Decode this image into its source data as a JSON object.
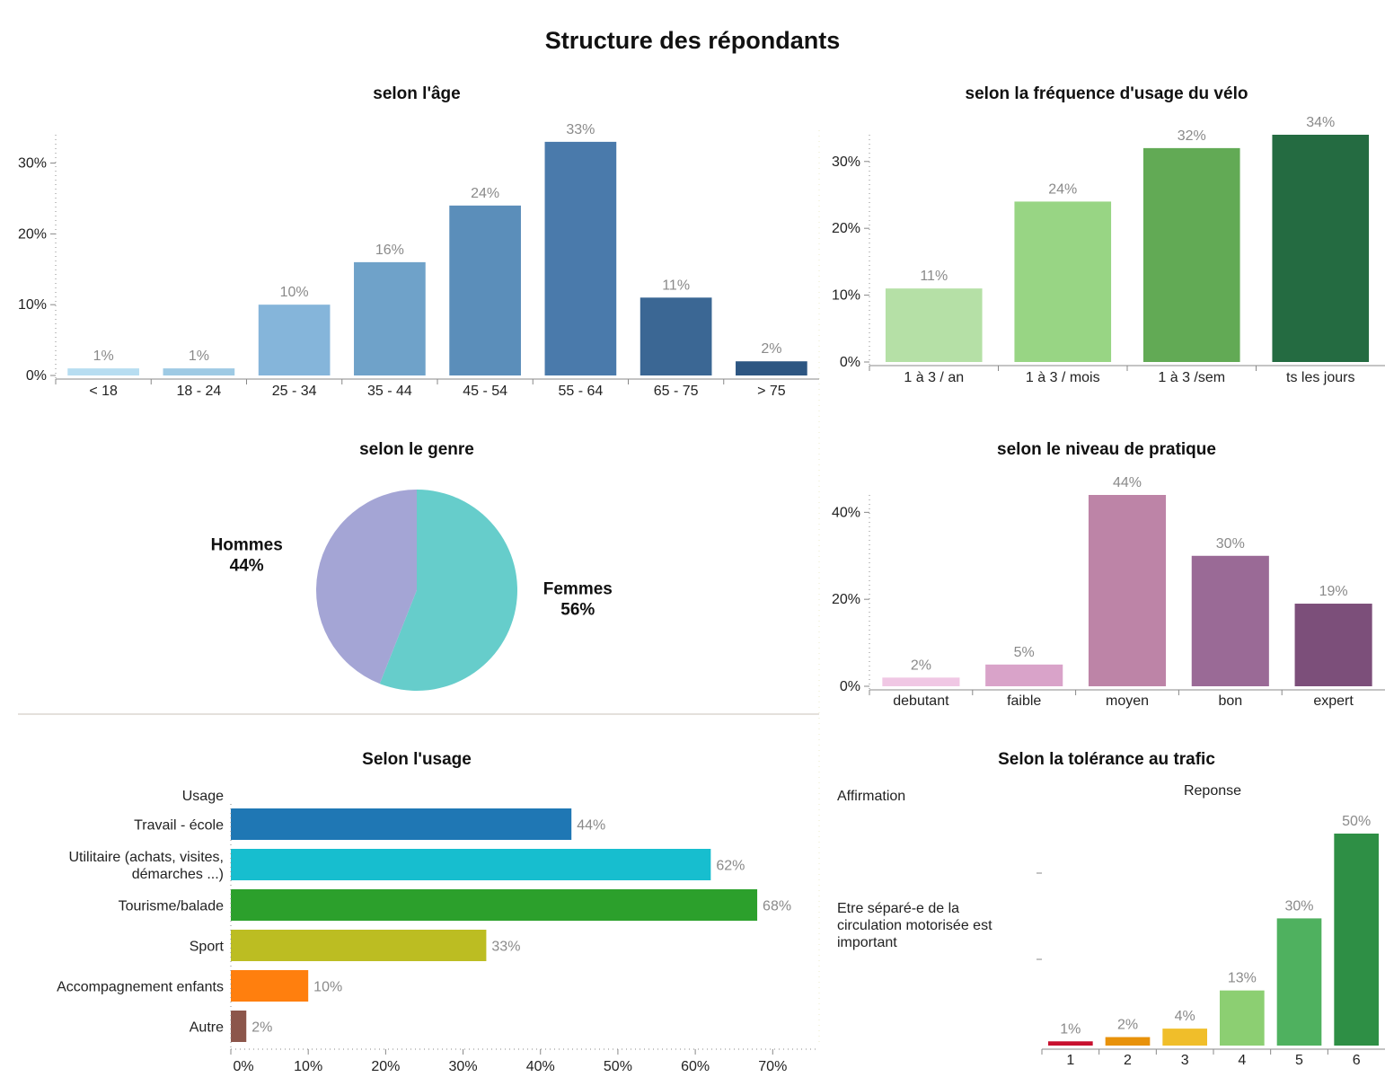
{
  "page": {
    "title": "Structure des répondants"
  },
  "chart_data": [
    {
      "id": "age",
      "type": "bar",
      "title": "selon l'âge",
      "categories": [
        "< 18",
        "18 - 24",
        "25 - 34",
        "35 - 44",
        "45 - 54",
        "55 - 64",
        "65 - 75",
        "> 75"
      ],
      "values": [
        1,
        1,
        10,
        16,
        24,
        33,
        11,
        2
      ],
      "value_labels": [
        "1%",
        "1%",
        "10%",
        "16%",
        "24%",
        "33%",
        "11%",
        "2%"
      ],
      "colors": [
        "#b7ddf1",
        "#9ecae4",
        "#85b5da",
        "#6fa2c9",
        "#5b8eba",
        "#4a7aab",
        "#3b6794",
        "#2d5682"
      ],
      "yticks": [
        0,
        10,
        20,
        30
      ],
      "ytick_labels": [
        "0%",
        "10%",
        "20%",
        "30%"
      ],
      "ylim": [
        0,
        34
      ]
    },
    {
      "id": "frequence",
      "type": "bar",
      "title": "selon la fréquence d'usage du vélo",
      "categories": [
        "1 à 3 / an",
        "1 à 3 / mois",
        "1 à 3 /sem",
        "ts les jours"
      ],
      "values": [
        11,
        24,
        32,
        34
      ],
      "value_labels": [
        "11%",
        "24%",
        "32%",
        "34%"
      ],
      "colors": [
        "#b5e0a6",
        "#98d584",
        "#62aa55",
        "#246b41"
      ],
      "yticks": [
        0,
        10,
        20,
        30
      ],
      "ytick_labels": [
        "0%",
        "10%",
        "20%",
        "30%"
      ],
      "ylim": [
        0,
        34
      ]
    },
    {
      "id": "genre",
      "type": "pie",
      "title": "selon le genre",
      "labels": [
        "Femmes",
        "Hommes"
      ],
      "values": [
        56,
        44
      ],
      "value_labels": [
        "56%",
        "44%"
      ],
      "colors": [
        "#66cdcb",
        "#a4a5d5"
      ]
    },
    {
      "id": "niveau",
      "type": "bar",
      "title": "selon le niveau de pratique",
      "categories": [
        "debutant",
        "faible",
        "moyen",
        "bon",
        "expert"
      ],
      "values": [
        2,
        5,
        44,
        30,
        19
      ],
      "value_labels": [
        "2%",
        "5%",
        "44%",
        "30%",
        "19%"
      ],
      "colors": [
        "#f0c7e4",
        "#d9a3c9",
        "#bd84a7",
        "#9a6a96",
        "#7c4f7a"
      ],
      "yticks": [
        0,
        20,
        40
      ],
      "ytick_labels": [
        "0%",
        "20%",
        "40%"
      ],
      "ylim": [
        0,
        44
      ]
    },
    {
      "id": "usage",
      "type": "bar",
      "orientation": "horizontal",
      "title": "Selon l'usage",
      "header": "Usage",
      "categories": [
        "Travail - école",
        "Utilitaire (achats, visites, démarches ...)",
        "Tourisme/balade",
        "Sport",
        "Accompagnement enfants",
        "Autre"
      ],
      "category_lines": [
        [
          "Travail - école"
        ],
        [
          "Utilitaire (achats, visites,",
          "démarches ...)"
        ],
        [
          "Tourisme/balade"
        ],
        [
          "Sport"
        ],
        [
          "Accompagnement enfants"
        ],
        [
          "Autre"
        ]
      ],
      "values": [
        44,
        62,
        68,
        33,
        10,
        2
      ],
      "value_labels": [
        "44%",
        "62%",
        "68%",
        "33%",
        "10%",
        "2%"
      ],
      "colors": [
        "#1f77b4",
        "#17becf",
        "#2ca02c",
        "#bcbd22",
        "#ff7f0e",
        "#8c564b"
      ],
      "xticks": [
        0,
        10,
        20,
        30,
        40,
        50,
        60,
        70
      ],
      "xtick_labels": [
        "0%",
        "10%",
        "20%",
        "30%",
        "40%",
        "50%",
        "60%",
        "70%"
      ],
      "xlim": [
        0,
        76
      ]
    },
    {
      "id": "tolerance",
      "type": "bar",
      "title": "Selon la tolérance au trafic",
      "row_header": "Affirmation",
      "column_header": "Reponse",
      "row_label_lines": [
        "Etre séparé-e de la",
        "circulation motorisée est",
        "important"
      ],
      "categories": [
        "1",
        "2",
        "3",
        "4",
        "5",
        "6"
      ],
      "values": [
        1,
        2,
        4,
        13,
        30,
        50
      ],
      "value_labels": [
        "1%",
        "2%",
        "4%",
        "13%",
        "30%",
        "50%"
      ],
      "colors": [
        "#c8102e",
        "#e8920a",
        "#f0be2a",
        "#8ccf72",
        "#4fb15f",
        "#2e8f45"
      ],
      "ylim": [
        0,
        50
      ]
    }
  ]
}
